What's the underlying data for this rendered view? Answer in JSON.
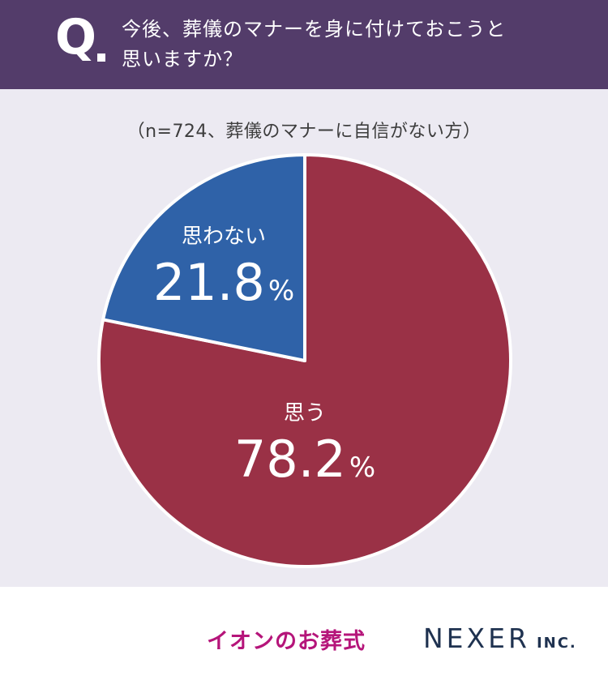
{
  "header": {
    "q_mark": "Q",
    "question": "今後、葬儀のマナーを身に付けておこうと\n思いますか？"
  },
  "subtitle": "（n=724、葬儀のマナーに自信がない方）",
  "chart_data": {
    "type": "pie",
    "title": "今後、葬儀のマナーを身に付けておこうと思いますか？",
    "subtitle": "（n=724、葬儀のマナーに自信がない方）",
    "slices": [
      {
        "label": "思う",
        "value": 78.2,
        "value_text": "78.2",
        "unit": "%",
        "color": "#9a3146"
      },
      {
        "label": "思わない",
        "value": 21.8,
        "value_text": "21.8",
        "unit": "%",
        "color": "#2f62a8"
      }
    ],
    "start": "12 o'clock",
    "direction": "clockwise"
  },
  "footer": {
    "logo_aeon": "イオンのお葬式",
    "logo_nexer": "NEXER",
    "logo_nexer_suffix": "INC."
  },
  "colors": {
    "header_bg": "#533c6a",
    "chart_bg": "#eceaf2"
  }
}
